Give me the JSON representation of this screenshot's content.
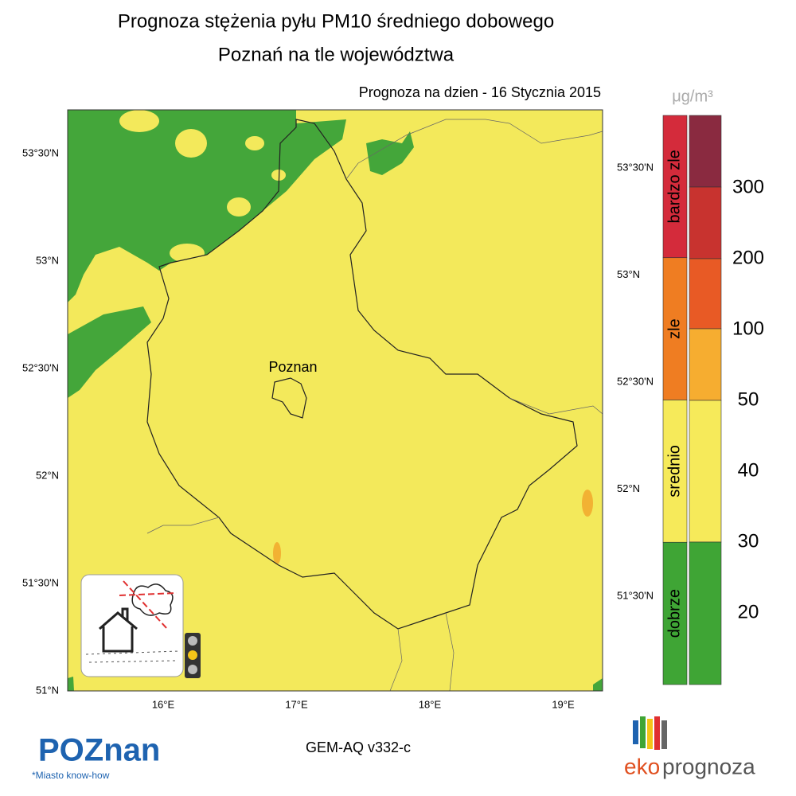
{
  "header": {
    "title": "Prognoza stężenia pyłu PM10 średniego dobowego",
    "subtitle": "Poznań na tle województwa",
    "date": "Prognoza na dzien -  16 Stycznia 2015"
  },
  "map": {
    "city_label": "Poznan",
    "lat_left": [
      "53°30'N",
      "53°N",
      "52°30'N",
      "52°N",
      "51°30'N",
      "51°N"
    ],
    "lat_right": [
      "53°30'N",
      "53°N",
      "52°30'N",
      "52°N",
      "51°30'N"
    ],
    "lon": [
      "16°E",
      "17°E",
      "18°E",
      "19°E"
    ],
    "model": "GEM-AQ v332-c"
  },
  "legend": {
    "unit": "μg/m³",
    "categories": [
      {
        "label": "bardzo zle",
        "color": "#d42b3b"
      },
      {
        "label": "zle",
        "color": "#ef7d22"
      },
      {
        "label": "srednio",
        "color": "#f6ea5a"
      },
      {
        "label": "dobrze",
        "color": "#3fa535"
      }
    ],
    "bands": [
      "#8a2a40",
      "#c8332f",
      "#e85a25",
      "#f6ad30",
      "#f6ea5a",
      "#3fa535"
    ],
    "thresholds": [
      300,
      200,
      100,
      50,
      40,
      30,
      20
    ]
  },
  "logos": {
    "poznan": "POZnan",
    "tagline": "*Miasto know-how",
    "eko": "eko",
    "prognoza": "prognoza"
  }
}
